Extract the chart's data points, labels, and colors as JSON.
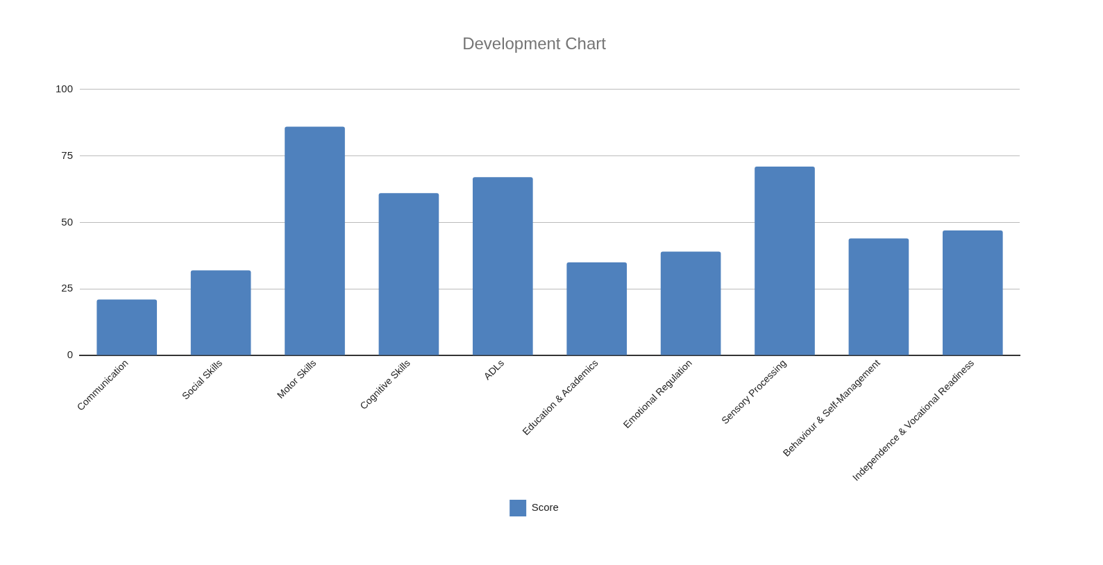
{
  "chart_data": {
    "type": "bar",
    "title": "Development Chart",
    "categories": [
      "Communication",
      "Social Skills",
      "Motor Skills",
      "Cognitive Skills",
      "ADLs",
      "Education & Academics",
      "Emotional Regulation",
      "Sensory Processing",
      "Behaviour & Self-Management",
      "Independence & Vocational Readiness"
    ],
    "series": [
      {
        "name": "Score",
        "color": "#4f81bd",
        "values": [
          21,
          32,
          86,
          61,
          67,
          35,
          39,
          71,
          44,
          47
        ]
      }
    ],
    "ylim": [
      0,
      100
    ],
    "yticks": [
      0,
      25,
      50,
      75,
      100
    ],
    "grid": "y",
    "legend": "bottom"
  }
}
